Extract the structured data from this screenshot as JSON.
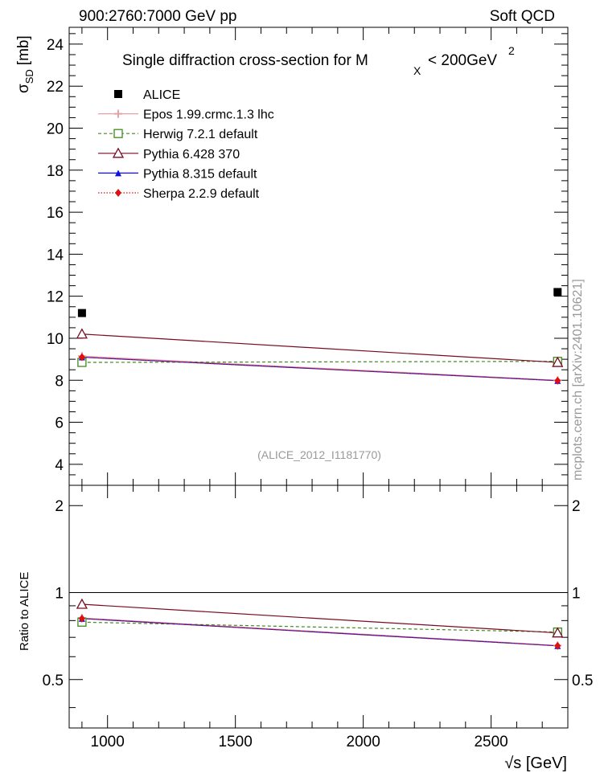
{
  "header": {
    "left": "900:2760:7000 GeV pp",
    "right": "Soft QCD"
  },
  "watermark": "mcplots.cern.ch [arXiv:2401.10621]",
  "chart_data": {
    "type": "line",
    "title_main": "Single diffraction cross-section for M",
    "title_sub": "X",
    "title_rest": "< 200GeV",
    "title_sup": "2",
    "analysis_label": "(ALICE_2012_I1181770)",
    "ylabel_main": "σ",
    "ylabel_sub": "SD",
    "ylabel_unit": "[mb]",
    "xlabel_sqrt": "√s",
    "xlabel_unit": "[GeV]",
    "xlim": [
      850,
      2800
    ],
    "ylim": [
      3,
      24.8
    ],
    "x_ticks": [
      "1000",
      "1500",
      "2000",
      "2500"
    ],
    "y_ticks": [
      "4",
      "6",
      "8",
      "10",
      "12",
      "14",
      "16",
      "18",
      "20",
      "22",
      "24"
    ],
    "x": [
      900,
      2760
    ],
    "data": {
      "name": "ALICE",
      "values": [
        11.2,
        12.2
      ],
      "color": "#000000"
    },
    "series": [
      {
        "name": "Epos 1.99.crmc.1.3 lhc",
        "values": [
          9.15,
          8.0
        ],
        "color": "#e7a0a4",
        "style": "solid",
        "marker": "cross"
      },
      {
        "name": "Herwig 7.2.1 default",
        "values": [
          8.85,
          8.9
        ],
        "color": "#3f8a1f",
        "style": "dashed",
        "marker": "open-square"
      },
      {
        "name": "Pythia 6.428 370",
        "values": [
          10.2,
          8.85
        ],
        "color": "#7a0a21",
        "style": "solid",
        "marker": "open-triangle"
      },
      {
        "name": "Pythia 8.315 default",
        "values": [
          9.1,
          7.98
        ],
        "color": "#1010dd",
        "style": "solid",
        "marker": "filled-triangle"
      },
      {
        "name": "Sherpa 2.2.9 default",
        "values": [
          9.1,
          7.98
        ],
        "color": "#dd1010",
        "style": "dotted",
        "marker": "filled-diamond"
      }
    ],
    "ratio": {
      "ylabel": "Ratio to ALICE",
      "ylim": [
        0.34,
        2.35
      ],
      "y_ticks": [
        "0.5",
        "1",
        "2"
      ],
      "reference": 1,
      "series_values": [
        [
          0.817,
          0.656
        ],
        [
          0.79,
          0.73
        ],
        [
          0.911,
          0.725
        ],
        [
          0.813,
          0.654
        ],
        [
          0.813,
          0.654
        ]
      ]
    }
  }
}
